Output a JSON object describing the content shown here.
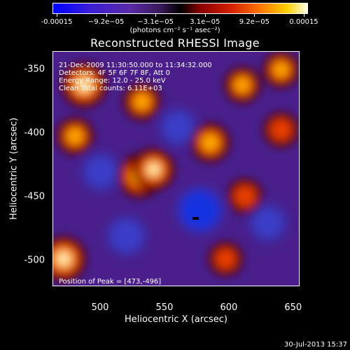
{
  "colorbar": {
    "ticks": [
      "-0.00015",
      "−9.2e−05",
      "−3.1e−05",
      "3.1e−05",
      "9.2e−05",
      "0.00015"
    ],
    "units": "(photons cm⁻² s⁻¹ asec⁻²)",
    "range": [
      -0.00015,
      0.00015
    ]
  },
  "chart_data": {
    "type": "heatmap",
    "title": "Reconstructed RHESSI Image",
    "xlabel": "Heliocentric X (arcsec)",
    "ylabel": "Heliocentric Y (arcsec)",
    "xlim": [
      463,
      655
    ],
    "ylim": [
      -520,
      -336
    ],
    "xticks": [
      "500",
      "550",
      "600",
      "650"
    ],
    "yticks": [
      "-350",
      "-400",
      "-450",
      "-500"
    ],
    "annotations": [
      "21-Dec-2009 11:30:50.000 to 11:34:32.000",
      "Detectors: 4F 5F 6F 7F 8F, Att 0",
      "Energy Range: 12.0 - 25.0 keV",
      "Clean    Total counts: 6.11E+03",
      "Position of Peak = [473,-496]"
    ],
    "peak_position": [
      473,
      -496
    ],
    "bright_sources": [
      {
        "x": 487,
        "y": -362,
        "level": 1.0
      },
      {
        "x": 471,
        "y": -498,
        "level": 1.0
      },
      {
        "x": 530,
        "y": -433,
        "level": 0.95
      },
      {
        "x": 541,
        "y": -428,
        "level": 0.85
      },
      {
        "x": 585,
        "y": -407,
        "level": 0.7
      },
      {
        "x": 610,
        "y": -362,
        "level": 0.55
      },
      {
        "x": 640,
        "y": -350,
        "level": 0.55
      },
      {
        "x": 640,
        "y": -397,
        "level": 0.5
      },
      {
        "x": 532,
        "y": -375,
        "level": 0.6
      },
      {
        "x": 597,
        "y": -498,
        "level": 0.45
      },
      {
        "x": 480,
        "y": -402,
        "level": 0.6
      },
      {
        "x": 612,
        "y": -449,
        "level": 0.5
      }
    ],
    "dark_sources": [
      {
        "x": 577,
        "y": -460,
        "level": -1.0
      },
      {
        "x": 520,
        "y": -480,
        "level": -0.6
      },
      {
        "x": 500,
        "y": -430,
        "level": -0.55
      },
      {
        "x": 630,
        "y": -470,
        "level": -0.5
      },
      {
        "x": 560,
        "y": -395,
        "level": -0.5
      }
    ]
  },
  "footer": {
    "date": "30-Jul-2013 15:37"
  }
}
